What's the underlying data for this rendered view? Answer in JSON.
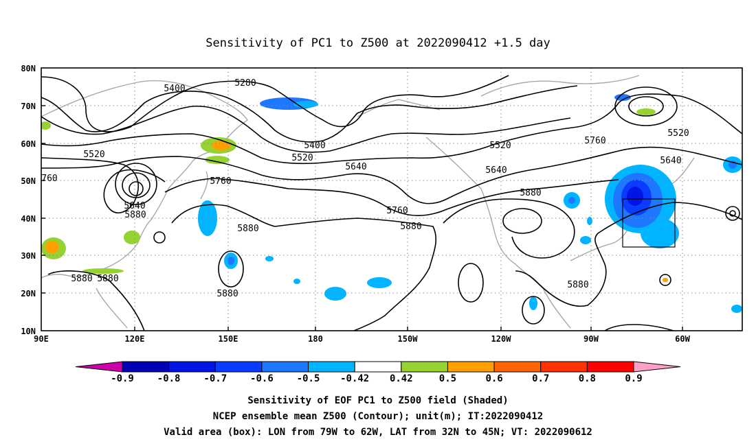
{
  "title": "Sensitivity of PC1 to Z500 at 2022090412 +1.5 day",
  "map": {
    "lon_ticks": [
      "90E",
      "120E",
      "150E",
      "180",
      "150W",
      "120W",
      "90W",
      "60W"
    ],
    "lat_ticks": [
      "80N",
      "70N",
      "60N",
      "50N",
      "40N",
      "30N",
      "20N",
      "10N"
    ],
    "contour_labels": [
      "5280",
      "5400",
      "5400",
      "5520",
      "5520",
      "5520",
      "5520",
      "5640",
      "5640",
      "5640",
      "5640",
      "5760",
      "5760",
      "5760",
      "5880",
      "5880",
      "5880",
      "5880",
      "5880",
      "5880",
      "5880",
      "760",
      "5880"
    ],
    "valid_box": {
      "lon_west": "79W",
      "lon_east": "62W",
      "lat_south": "32N",
      "lat_north": "45N"
    }
  },
  "colorbar": {
    "ticks": [
      "-0.9",
      "-0.8",
      "-0.7",
      "-0.6",
      "-0.5",
      "-0.42",
      "0.42",
      "0.5",
      "0.6",
      "0.7",
      "0.8",
      "0.9"
    ],
    "colors": [
      "#cc00aa",
      "#0000b4",
      "#0014e6",
      "#0a3cff",
      "#1e78ff",
      "#00b4ff",
      "#ffffff",
      "#96d232",
      "#ffa000",
      "#ff6400",
      "#ff3200",
      "#ff0000",
      "#ffa0c8"
    ]
  },
  "footer": {
    "line1": "Sensitivity of EOF PC1 to Z500 field (Shaded)",
    "line2": "NCEP ensemble mean Z500 (Contour); unit(m); IT:2022090412",
    "line3": "Valid area (box): LON from 79W to 62W, LAT from 32N to 45N; VT: 2022090612"
  }
}
